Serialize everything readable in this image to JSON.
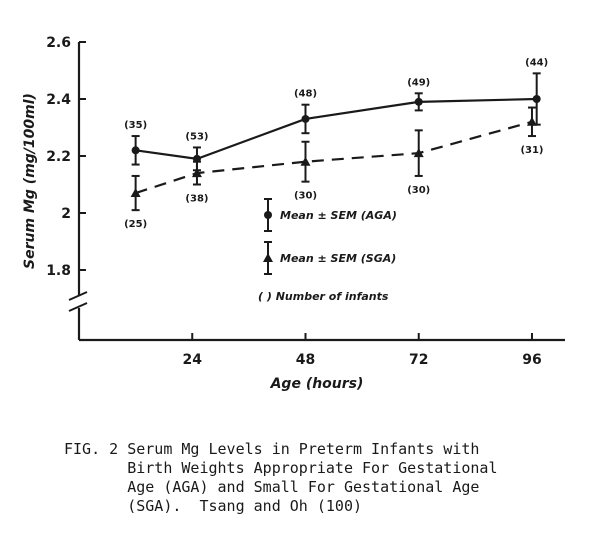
{
  "chart_data": {
    "type": "line",
    "xlabel": "Age (hours)",
    "ylabel": "Serum Mg (mg/100ml)",
    "xlim": [
      0,
      103
    ],
    "ylim": [
      1.6,
      2.6
    ],
    "x_ticks": [
      24,
      48,
      72,
      96
    ],
    "y_ticks": [
      1.8,
      2.0,
      2.2,
      2.4,
      2.6
    ],
    "y_tick_labels": [
      "1.8",
      "2",
      "2.2",
      "2.4",
      "2.6"
    ],
    "axis_break": true,
    "grid": false,
    "legend_position": "center",
    "series": [
      {
        "name": "Mean ± SEM (AGA)",
        "marker": "circle",
        "line_style": "solid",
        "x": [
          12,
          25,
          48,
          72,
          97
        ],
        "y": [
          2.22,
          2.19,
          2.33,
          2.39,
          2.4
        ],
        "sem": [
          0.05,
          0.04,
          0.05,
          0.03,
          0.09
        ],
        "n_labels": [
          "(35)",
          "(53)",
          "(48)",
          "(49)",
          "(44)"
        ]
      },
      {
        "name": "Mean ± SEM (SGA)",
        "marker": "triangle",
        "line_style": "dashed",
        "x": [
          12,
          25,
          48,
          72,
          96
        ],
        "y": [
          2.07,
          2.14,
          2.18,
          2.21,
          2.32
        ],
        "sem": [
          0.06,
          0.04,
          0.07,
          0.08,
          0.05
        ],
        "n_labels": [
          "(25)",
          "(38)",
          "(30)",
          "(30)",
          "(31)"
        ]
      }
    ],
    "legend_note": "( ) Number of infants"
  },
  "caption": {
    "lines": [
      "FIG. 2 Serum Mg Levels in Preterm Infants with",
      "       Birth Weights Appropriate For Gestational",
      "       Age (AGA) and Small For Gestational Age",
      "       (SGA).  Tsang and Oh (100)"
    ]
  }
}
